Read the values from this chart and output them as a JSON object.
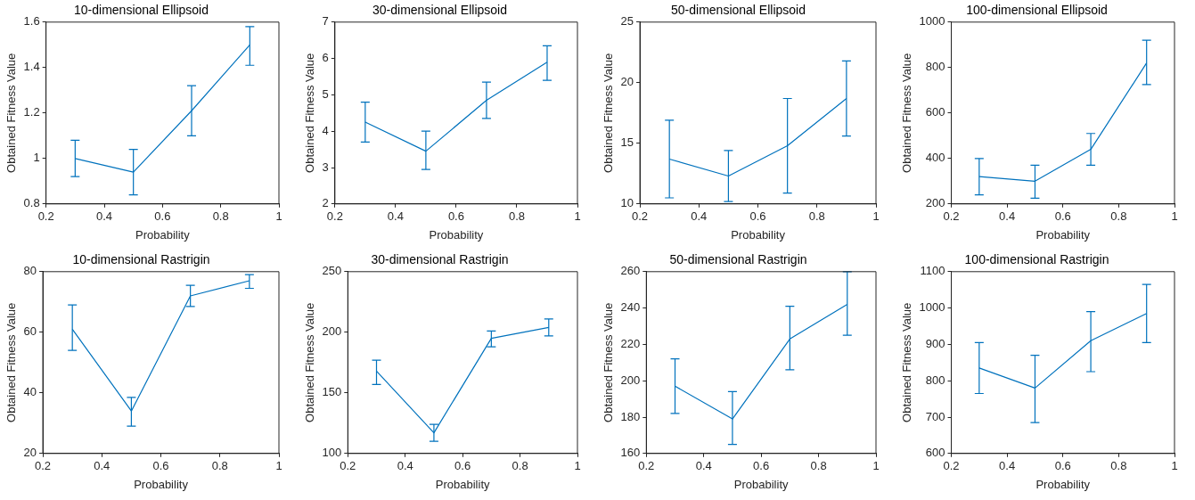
{
  "chart_data": [
    {
      "type": "line",
      "title": "10-dimensional Ellipsoid",
      "xlabel": "Probability",
      "ylabel": "Obtained Fitness Value",
      "x": [
        0.3,
        0.5,
        0.7,
        0.9
      ],
      "series": [
        {
          "color": "#0072bd",
          "values": [
            1.0,
            0.94,
            1.21,
            1.5
          ],
          "errors": [
            [
              0.92,
              1.08
            ],
            [
              0.84,
              1.04
            ],
            [
              1.1,
              1.32
            ],
            [
              1.41,
              1.58
            ]
          ]
        }
      ],
      "xlim": [
        0.2,
        1
      ],
      "xticks": [
        0.2,
        0.4,
        0.6,
        0.8,
        1
      ],
      "ylim": [
        0.8,
        1.6
      ],
      "yticks": [
        0.8,
        1,
        1.2,
        1.4,
        1.6
      ],
      "grid": false,
      "legend": false,
      "marker": "none",
      "line_style": "solid"
    },
    {
      "type": "line",
      "title": "30-dimensional Ellipsoid",
      "xlabel": "Probability",
      "ylabel": "Obtained Fitness Value",
      "x": [
        0.3,
        0.5,
        0.7,
        0.9
      ],
      "series": [
        {
          "color": "#0072bd",
          "values": [
            4.25,
            3.45,
            4.85,
            5.9
          ],
          "errors": [
            [
              3.7,
              4.8
            ],
            [
              2.95,
              4.0
            ],
            [
              4.35,
              5.35
            ],
            [
              5.4,
              6.35
            ]
          ]
        }
      ],
      "xlim": [
        0.2,
        1
      ],
      "xticks": [
        0.2,
        0.4,
        0.6,
        0.8,
        1
      ],
      "ylim": [
        2,
        7
      ],
      "yticks": [
        2,
        3,
        4,
        5,
        6,
        7
      ],
      "grid": false,
      "legend": false,
      "marker": "none",
      "line_style": "solid"
    },
    {
      "type": "line",
      "title": "50-dimensional Ellipsoid",
      "xlabel": "Probability",
      "ylabel": "Obtained Fitness Value",
      "x": [
        0.3,
        0.5,
        0.7,
        0.9
      ],
      "series": [
        {
          "color": "#0072bd",
          "values": [
            13.7,
            12.3,
            14.8,
            18.7
          ],
          "errors": [
            [
              10.5,
              16.9
            ],
            [
              10.2,
              14.4
            ],
            [
              10.9,
              18.7
            ],
            [
              15.6,
              21.8
            ]
          ]
        }
      ],
      "xlim": [
        0.2,
        1
      ],
      "xticks": [
        0.2,
        0.4,
        0.6,
        0.8,
        1
      ],
      "ylim": [
        10,
        25
      ],
      "yticks": [
        10,
        15,
        20,
        25
      ],
      "grid": false,
      "legend": false,
      "marker": "none",
      "line_style": "solid"
    },
    {
      "type": "line",
      "title": "100-dimensional Ellipsoid",
      "xlabel": "Probability",
      "ylabel": "Obtained Fitness Value",
      "x": [
        0.3,
        0.5,
        0.7,
        0.9
      ],
      "series": [
        {
          "color": "#0072bd",
          "values": [
            320,
            300,
            440,
            820
          ],
          "errors": [
            [
              240,
              400
            ],
            [
              225,
              370
            ],
            [
              370,
              510
            ],
            [
              725,
              920
            ]
          ]
        }
      ],
      "xlim": [
        0.2,
        1
      ],
      "xticks": [
        0.2,
        0.4,
        0.6,
        0.8,
        1
      ],
      "ylim": [
        200,
        1000
      ],
      "yticks": [
        200,
        400,
        600,
        800,
        1000
      ],
      "grid": false,
      "legend": false,
      "marker": "none",
      "line_style": "solid"
    },
    {
      "type": "line",
      "title": "10-dimensional Rastrigin",
      "xlabel": "Probability",
      "ylabel": "Obtained Fitness Value",
      "x": [
        0.3,
        0.5,
        0.7,
        0.9
      ],
      "series": [
        {
          "color": "#0072bd",
          "values": [
            61,
            34,
            72,
            77
          ],
          "errors": [
            [
              54,
              69
            ],
            [
              29,
              38.5
            ],
            [
              68.5,
              75.5
            ],
            [
              74.5,
              79
            ]
          ]
        }
      ],
      "xlim": [
        0.2,
        1
      ],
      "xticks": [
        0.2,
        0.4,
        0.6,
        0.8,
        1
      ],
      "ylim": [
        20,
        80
      ],
      "yticks": [
        20,
        40,
        60,
        80
      ],
      "grid": false,
      "legend": false,
      "marker": "none",
      "line_style": "solid"
    },
    {
      "type": "line",
      "title": "30-dimensional Rastrigin",
      "xlabel": "Probability",
      "ylabel": "Obtained Fitness Value",
      "x": [
        0.3,
        0.5,
        0.7,
        0.9
      ],
      "series": [
        {
          "color": "#0072bd",
          "values": [
            168,
            117,
            195,
            204
          ],
          "errors": [
            [
              157,
              177
            ],
            [
              110,
              124
            ],
            [
              188,
              201
            ],
            [
              197,
              211
            ]
          ]
        }
      ],
      "xlim": [
        0.2,
        1
      ],
      "xticks": [
        0.2,
        0.4,
        0.6,
        0.8,
        1
      ],
      "ylim": [
        100,
        250
      ],
      "yticks": [
        100,
        150,
        200,
        250
      ],
      "grid": false,
      "legend": false,
      "marker": "none",
      "line_style": "solid"
    },
    {
      "type": "line",
      "title": "50-dimensional Rastrigin",
      "xlabel": "Probability",
      "ylabel": "Obtained Fitness Value",
      "x": [
        0.3,
        0.5,
        0.7,
        0.9
      ],
      "series": [
        {
          "color": "#0072bd",
          "values": [
            197,
            179,
            223,
            242
          ],
          "errors": [
            [
              182,
              212
            ],
            [
              165,
              194
            ],
            [
              206,
              241
            ],
            [
              225,
              260
            ]
          ]
        }
      ],
      "xlim": [
        0.2,
        1
      ],
      "xticks": [
        0.2,
        0.4,
        0.6,
        0.8,
        1
      ],
      "ylim": [
        160,
        260
      ],
      "yticks": [
        160,
        180,
        200,
        220,
        240,
        260
      ],
      "grid": false,
      "legend": false,
      "marker": "none",
      "line_style": "solid"
    },
    {
      "type": "line",
      "title": "100-dimensional Rastrigin",
      "xlabel": "Probability",
      "ylabel": "Obtained Fitness Value",
      "x": [
        0.3,
        0.5,
        0.7,
        0.9
      ],
      "series": [
        {
          "color": "#0072bd",
          "values": [
            835,
            780,
            910,
            985
          ],
          "errors": [
            [
              765,
              905
            ],
            [
              685,
              870
            ],
            [
              825,
              990
            ],
            [
              905,
              1065
            ]
          ]
        }
      ],
      "xlim": [
        0.2,
        1
      ],
      "xticks": [
        0.2,
        0.4,
        0.6,
        0.8,
        1
      ],
      "ylim": [
        600,
        1100
      ],
      "yticks": [
        600,
        700,
        800,
        900,
        1000,
        1100
      ],
      "grid": false,
      "legend": false,
      "marker": "none",
      "line_style": "solid"
    }
  ]
}
